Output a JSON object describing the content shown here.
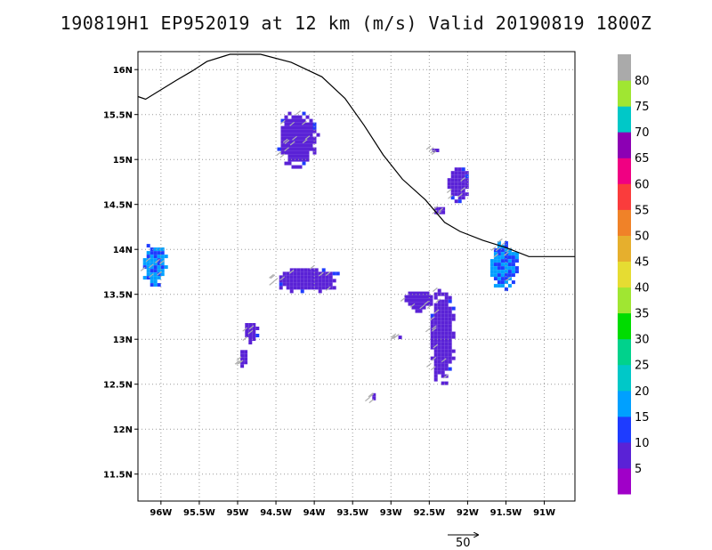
{
  "title": "190819H1  EP952019  at  12  km  (m/s)  Valid  20190819  1800Z",
  "chart_data": {
    "type": "heatmap",
    "title": "190819H1  EP952019  at  12  km  (m/s)  Valid  20190819  1800Z",
    "xlabel": "",
    "ylabel": "",
    "xlim": [
      -96.3,
      -90.6
    ],
    "ylim": [
      11.2,
      16.2
    ],
    "grid": true,
    "x_ticks": [
      -96,
      -95.5,
      -95,
      -94.5,
      -94,
      -93.5,
      -93,
      -92.5,
      -92,
      -91.5,
      -91
    ],
    "x_tick_labels": [
      "96W",
      "95.5W",
      "95W",
      "94.5W",
      "94W",
      "93.5W",
      "93W",
      "92.5W",
      "92W",
      "91.5W",
      "91W"
    ],
    "y_ticks": [
      11.5,
      12,
      12.5,
      13,
      13.5,
      14,
      14.5,
      15,
      15.5,
      16
    ],
    "y_tick_labels": [
      "11.5N",
      "12N",
      "12.5N",
      "13N",
      "13.5N",
      "14N",
      "14.5N",
      "15N",
      "15.5N",
      "16N"
    ],
    "coastline": [
      [
        -96.3,
        15.7
      ],
      [
        -96.2,
        15.67
      ],
      [
        -95.8,
        15.88
      ],
      [
        -95.6,
        15.98
      ],
      [
        -95.4,
        16.09
      ],
      [
        -95.1,
        16.17
      ],
      [
        -94.7,
        16.17
      ],
      [
        -94.3,
        16.08
      ],
      [
        -93.9,
        15.92
      ],
      [
        -93.6,
        15.68
      ],
      [
        -93.35,
        15.38
      ],
      [
        -93.1,
        15.05
      ],
      [
        -92.85,
        14.78
      ],
      [
        -92.55,
        14.55
      ],
      [
        -92.3,
        14.3
      ],
      [
        -92.1,
        14.2
      ],
      [
        -91.8,
        14.1
      ],
      [
        -91.5,
        14.02
      ],
      [
        -91.2,
        13.92
      ],
      [
        -90.6,
        13.92
      ]
    ],
    "colorbar": {
      "levels": [
        0,
        5,
        10,
        15,
        20,
        25,
        30,
        35,
        40,
        45,
        50,
        55,
        60,
        65,
        70,
        75,
        80,
        85
      ],
      "labels": [
        "5",
        "10",
        "15",
        "20",
        "25",
        "30",
        "35",
        "40",
        "45",
        "50",
        "55",
        "60",
        "65",
        "70",
        "75",
        "80"
      ],
      "colors": [
        "#a000c8",
        "#5a22d6",
        "#1e3cff",
        "#00a0ff",
        "#00c8c8",
        "#00d28c",
        "#00dc00",
        "#a0e632",
        "#e6dc32",
        "#e6af2d",
        "#f08228",
        "#fa3c3c",
        "#f00082",
        "#8c00b4",
        "#00c8c8",
        "#a0e632",
        "#aaaaaa"
      ]
    },
    "wind_areas": [
      {
        "name": "north-cluster",
        "lon": -94.25,
        "lat": 15.25,
        "rx": 0.28,
        "ry": 0.32,
        "value": 5
      },
      {
        "name": "center-cluster",
        "lon": -94.1,
        "lat": 13.68,
        "rx": 0.45,
        "ry": 0.15,
        "value": 5
      },
      {
        "name": "southeast-band",
        "lon": -92.35,
        "lat": 13.05,
        "rx": 0.18,
        "ry": 0.55,
        "value": 5
      },
      {
        "name": "southeast-band-top",
        "lon": -92.65,
        "lat": 13.45,
        "rx": 0.22,
        "ry": 0.12,
        "value": 5
      },
      {
        "name": "east-cluster",
        "lon": -92.15,
        "lat": 14.75,
        "rx": 0.16,
        "ry": 0.2,
        "value": 5
      },
      {
        "name": "west-edge-cluster",
        "lon": -96.1,
        "lat": 13.85,
        "rx": 0.18,
        "ry": 0.25,
        "value": 15
      },
      {
        "name": "east-edge-cluster",
        "lon": -91.55,
        "lat": 13.85,
        "rx": 0.2,
        "ry": 0.28,
        "value": 15
      },
      {
        "name": "east-small-1",
        "lon": -92.4,
        "lat": 14.45,
        "rx": 0.08,
        "ry": 0.06,
        "value": 5
      },
      {
        "name": "east-small-2",
        "lon": -92.45,
        "lat": 15.12,
        "rx": 0.06,
        "ry": 0.04,
        "value": 5
      },
      {
        "name": "sw-cluster-1",
        "lon": -94.85,
        "lat": 13.1,
        "rx": 0.1,
        "ry": 0.12,
        "value": 5
      },
      {
        "name": "sw-cluster-2",
        "lon": -94.95,
        "lat": 12.8,
        "rx": 0.06,
        "ry": 0.12,
        "value": 5
      },
      {
        "name": "south-small",
        "lon": -93.25,
        "lat": 12.38,
        "rx": 0.04,
        "ry": 0.06,
        "value": 5
      },
      {
        "name": "mid-small",
        "lon": -92.9,
        "lat": 13.05,
        "rx": 0.05,
        "ry": 0.03,
        "value": 5
      }
    ],
    "vector_scale": {
      "label": "50",
      "value": 50
    }
  }
}
